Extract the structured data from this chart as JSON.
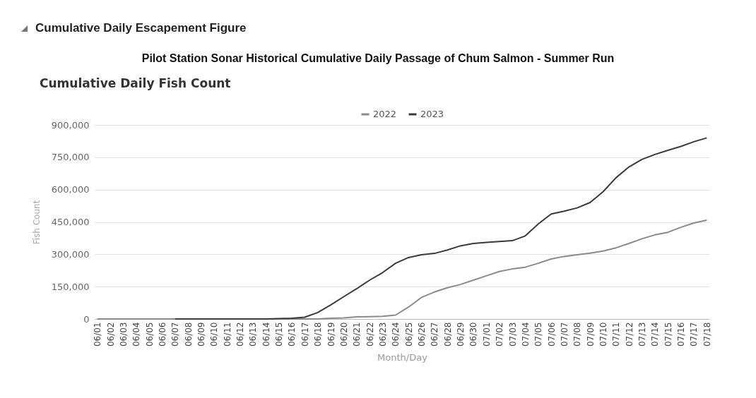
{
  "chart_data": {
    "type": "line",
    "annotations": [
      "Cumulative Daily Escapement Figure"
    ],
    "title": "Pilot Station Sonar Historical Cumulative Daily Passage of Chum Salmon - Summer Run",
    "subtitle": "Cumulative Daily Fish Count",
    "xlabel": "Month/Day",
    "ylabel": "Fish Count",
    "categories": [
      "06/01",
      "06/02",
      "06/03",
      "06/04",
      "06/05",
      "06/06",
      "06/07",
      "06/08",
      "06/09",
      "06/10",
      "06/11",
      "06/12",
      "06/13",
      "06/14",
      "06/15",
      "06/16",
      "06/17",
      "06/18",
      "06/19",
      "06/20",
      "06/21",
      "06/22",
      "06/23",
      "06/24",
      "06/25",
      "06/26",
      "06/27",
      "06/28",
      "06/29",
      "06/30",
      "07/01",
      "07/02",
      "07/03",
      "07/04",
      "07/05",
      "07/06",
      "07/07",
      "07/08",
      "07/09",
      "07/10",
      "07/11",
      "07/12",
      "07/13",
      "07/14",
      "07/15",
      "07/16",
      "07/17",
      "07/18"
    ],
    "series": [
      {
        "name": "2022",
        "color": "#8a8a8a",
        "values": [
          0,
          0,
          0,
          0,
          0,
          0,
          0,
          0,
          0,
          0,
          0,
          0,
          0,
          0,
          0,
          0,
          0,
          0,
          3000,
          5000,
          10000,
          11000,
          12000,
          18000,
          55000,
          100000,
          125000,
          145000,
          160000,
          180000,
          200000,
          220000,
          232000,
          240000,
          258000,
          278000,
          290000,
          298000,
          305000,
          315000,
          330000,
          350000,
          372000,
          390000,
          402000,
          425000,
          445000,
          458000
        ]
      },
      {
        "name": "2023",
        "color": "#3a3a3a",
        "values": [
          null,
          null,
          null,
          null,
          null,
          null,
          0,
          0,
          0,
          0,
          0,
          0,
          0,
          0,
          2000,
          3000,
          8000,
          30000,
          65000,
          103000,
          140000,
          180000,
          215000,
          258000,
          285000,
          298000,
          304000,
          320000,
          339000,
          350000,
          355000,
          359000,
          363000,
          385000,
          440000,
          487000,
          500000,
          515000,
          540000,
          590000,
          655000,
          705000,
          740000,
          763000,
          782000,
          800000,
          822000,
          840000
        ]
      }
    ],
    "ylim": [
      0,
      900000
    ],
    "yticks": [
      0,
      {
        "value": 150000,
        "label": "150,000"
      },
      {
        "value": 300000,
        "label": "300,000"
      },
      {
        "value": 450000,
        "label": "450,000"
      },
      {
        "value": 600000,
        "label": "600,000"
      },
      {
        "value": 750000,
        "label": "750,000"
      },
      {
        "value": 900000,
        "label": "900,000"
      }
    ],
    "grid": "y",
    "legend": "top"
  }
}
